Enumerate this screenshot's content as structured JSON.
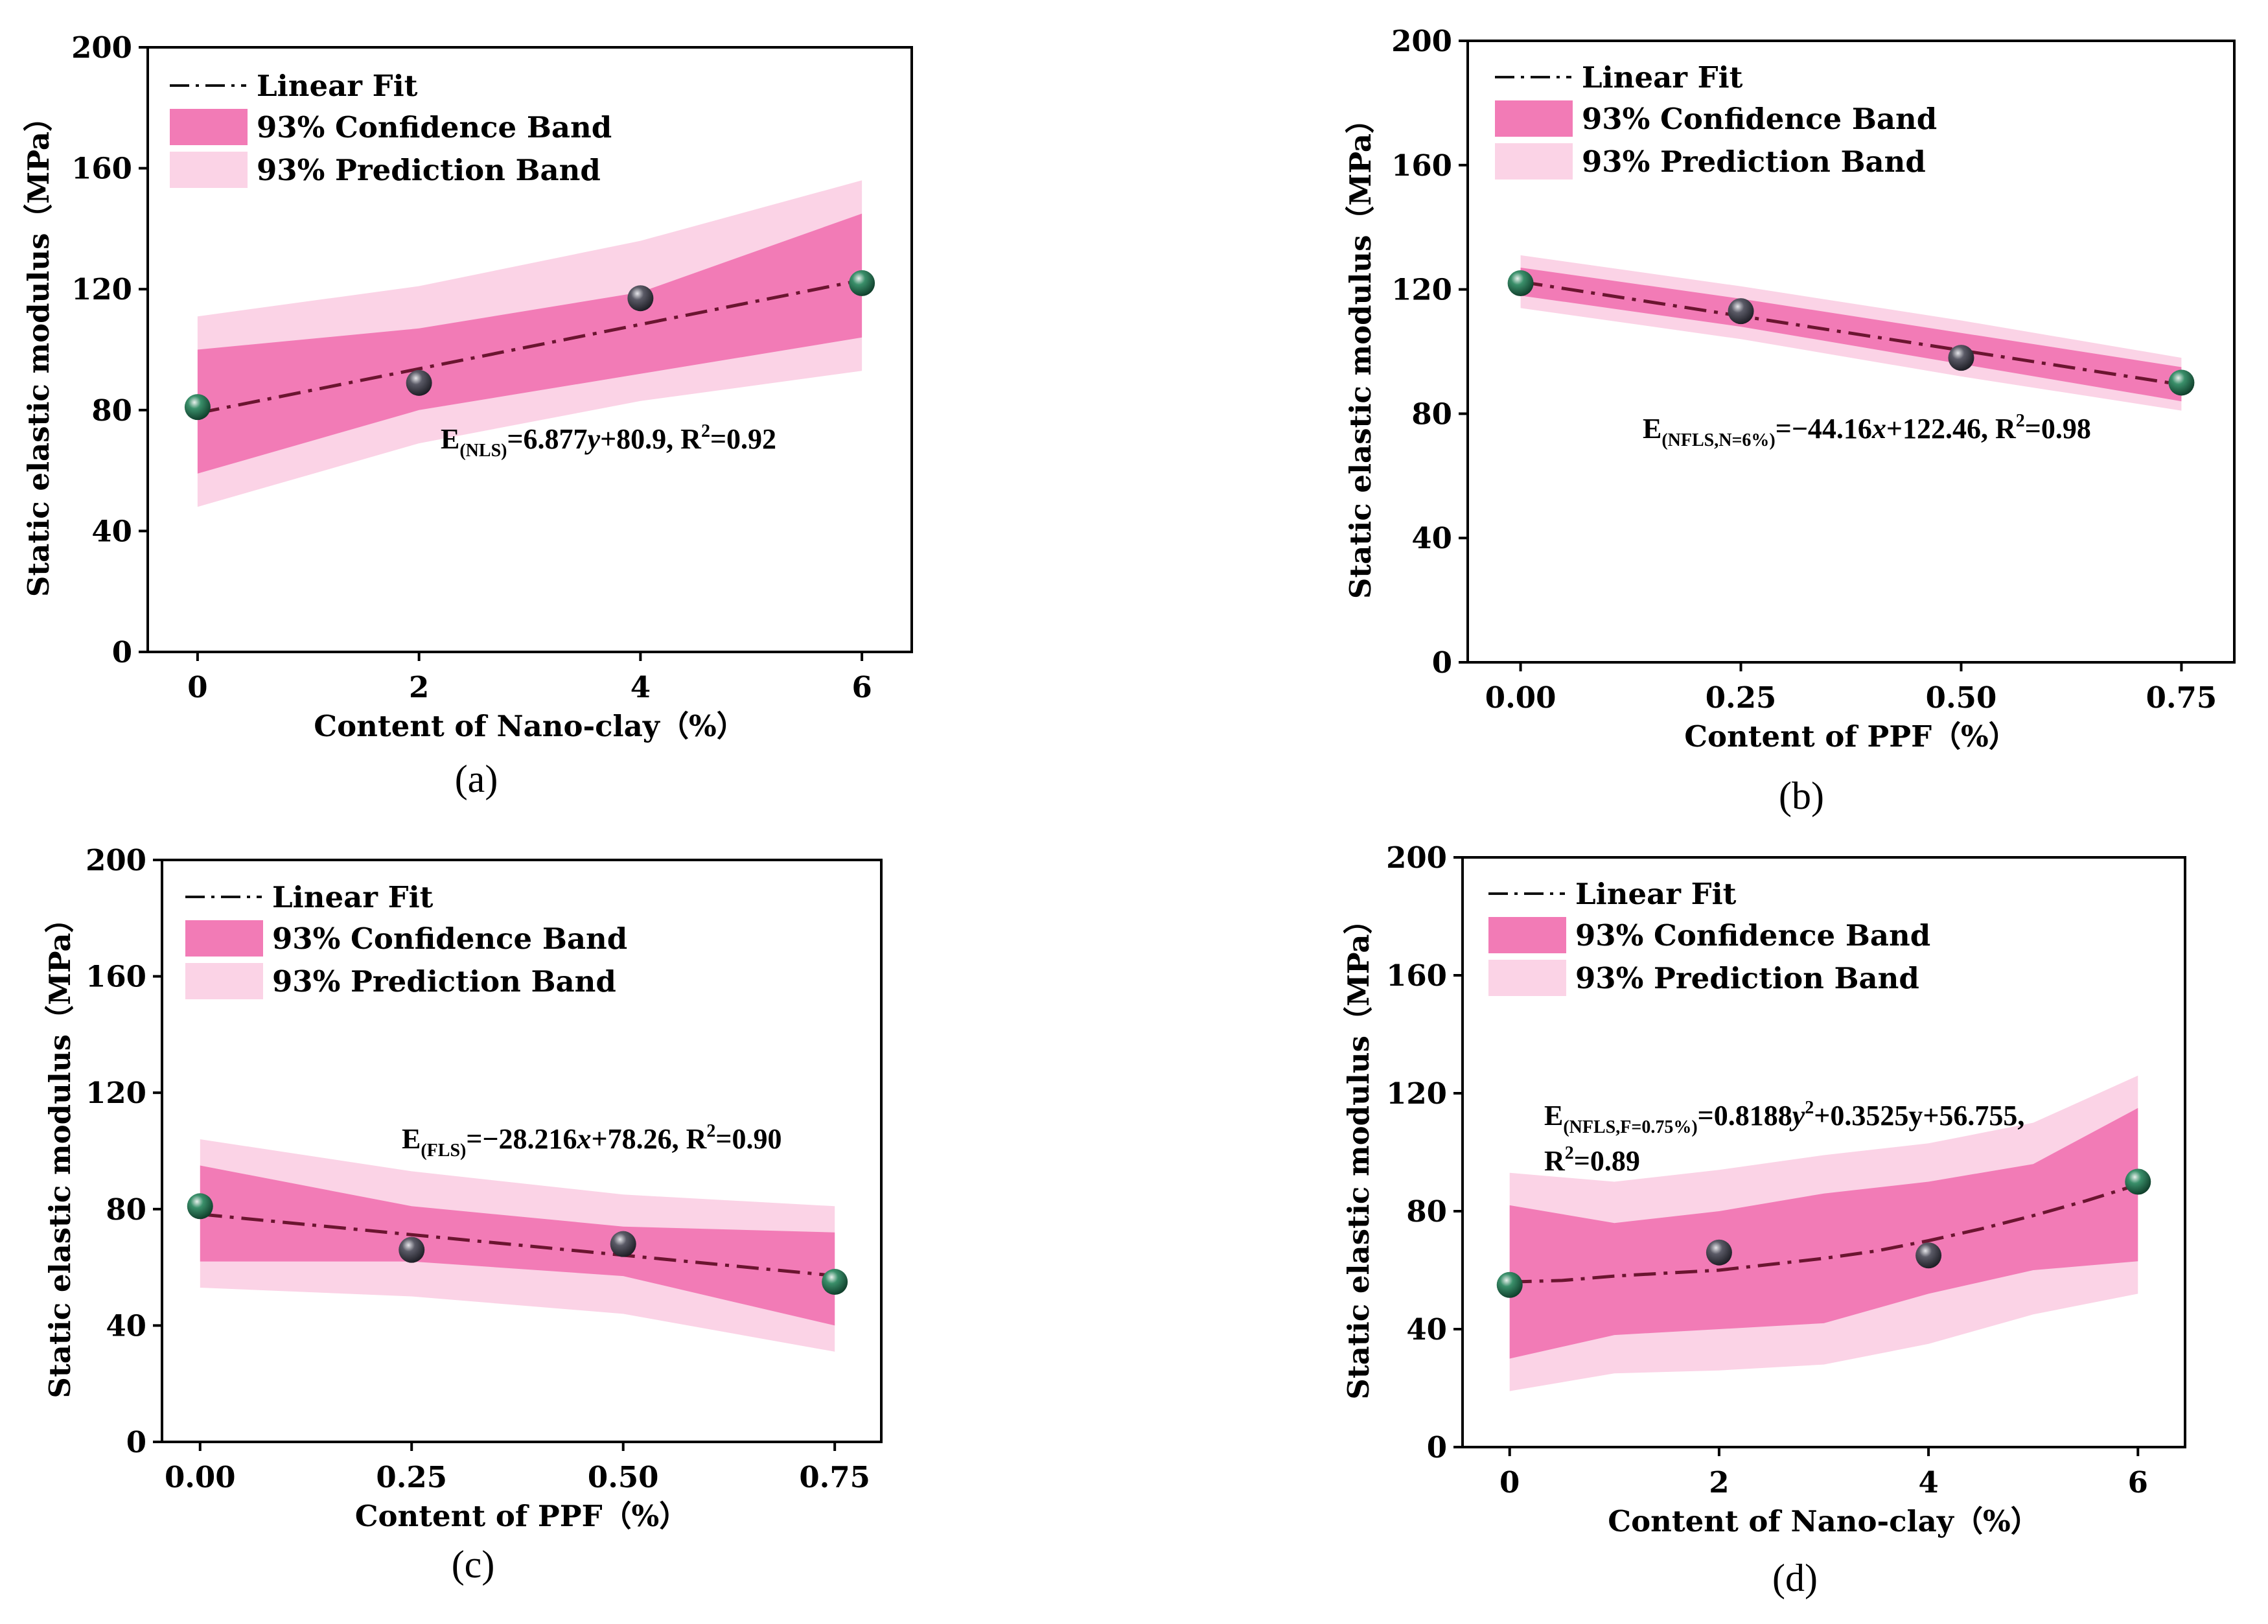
{
  "chart_data": [
    {
      "type": "line",
      "panel_label": "(a)",
      "xlabel": "Content of Nano-clay（%）",
      "ylabel": "Static elastic modulus（MPa）",
      "xlim": [
        -0.45,
        6.45
      ],
      "ylim": [
        0,
        200
      ],
      "xticks": [
        "0",
        "2",
        "4",
        "6"
      ],
      "xtick_values": [
        0,
        2,
        4,
        6
      ],
      "yticks": [
        "0",
        "40",
        "80",
        "120",
        "160",
        "200"
      ],
      "ytick_values": [
        0,
        40,
        80,
        120,
        160,
        200
      ],
      "legend": {
        "position": "top-left",
        "entries": [
          "Linear Fit",
          "93% Confidence Band",
          "93% Prediction Band"
        ]
      },
      "equation_lines": [
        [
          "E",
          "(NLS)",
          "=6.877",
          "y",
          "+80.9, R",
          "2",
          "=0.92"
        ]
      ],
      "points": {
        "x": [
          0,
          2,
          4,
          6
        ],
        "y": [
          81,
          89,
          117,
          122
        ]
      },
      "fit": {
        "x": [
          0,
          6
        ],
        "y": [
          79,
          123
        ]
      },
      "confidence_band": {
        "x": [
          0,
          2,
          4,
          6
        ],
        "upper": [
          100,
          107,
          119,
          145
        ],
        "lower": [
          59,
          80,
          92,
          104
        ]
      },
      "prediction_band": {
        "x": [
          0,
          2,
          4,
          6
        ],
        "upper": [
          111,
          121,
          136,
          156
        ],
        "lower": [
          48,
          69,
          83,
          93
        ]
      }
    },
    {
      "type": "line",
      "panel_label": "(b)",
      "xlabel": "Content of PPF（%）",
      "ylabel": "Static elastic modulus（MPa）",
      "xlim": [
        -0.06,
        0.81
      ],
      "ylim": [
        0,
        200
      ],
      "xticks": [
        "0.00",
        "0.25",
        "0.50",
        "0.75"
      ],
      "xtick_values": [
        0,
        0.25,
        0.5,
        0.75
      ],
      "yticks": [
        "0",
        "40",
        "80",
        "120",
        "160",
        "200"
      ],
      "ytick_values": [
        0,
        40,
        80,
        120,
        160,
        200
      ],
      "legend": {
        "position": "top-left",
        "entries": [
          "Linear Fit",
          "93% Confidence Band",
          "93% Prediction Band"
        ]
      },
      "equation_lines": [
        [
          "E",
          "(NFLS,N=6%)",
          "=−44.16",
          "x",
          "+122.46, R",
          "2",
          "=0.98"
        ]
      ],
      "points": {
        "x": [
          0,
          0.25,
          0.5,
          0.75
        ],
        "y": [
          122,
          113,
          98,
          90
        ]
      },
      "fit": {
        "x": [
          0,
          0.75
        ],
        "y": [
          122.46,
          89.34
        ]
      },
      "confidence_band": {
        "x": [
          0,
          0.25,
          0.5,
          0.75
        ],
        "upper": [
          127,
          117,
          106,
          95
        ],
        "lower": [
          118,
          108,
          96,
          84
        ]
      },
      "prediction_band": {
        "x": [
          0,
          0.25,
          0.5,
          0.75
        ],
        "upper": [
          131,
          121,
          110,
          98
        ],
        "lower": [
          114,
          104,
          92,
          81
        ]
      }
    },
    {
      "type": "line",
      "panel_label": "(c)",
      "xlabel": "Content of PPF（%）",
      "ylabel": "Static elastic modulus（MPa）",
      "xlim": [
        -0.045,
        0.805
      ],
      "ylim": [
        0,
        200
      ],
      "xticks": [
        "0.00",
        "0.25",
        "0.50",
        "0.75"
      ],
      "xtick_values": [
        0,
        0.25,
        0.5,
        0.75
      ],
      "yticks": [
        "0",
        "40",
        "80",
        "120",
        "160",
        "200"
      ],
      "ytick_values": [
        0,
        40,
        80,
        120,
        160,
        200
      ],
      "legend": {
        "position": "top-left",
        "entries": [
          "Linear Fit",
          "93% Confidence Band",
          "93% Prediction Band"
        ]
      },
      "equation_lines": [
        [
          "E",
          "(FLS)",
          "=−28.216",
          "x",
          "+78.26, R",
          "2",
          "=0.90"
        ]
      ],
      "points": {
        "x": [
          0,
          0.25,
          0.5,
          0.75
        ],
        "y": [
          81,
          66,
          68,
          55
        ]
      },
      "fit": {
        "x": [
          0,
          0.75
        ],
        "y": [
          78.26,
          57.1
        ]
      },
      "confidence_band": {
        "x": [
          0,
          0.25,
          0.5,
          0.75
        ],
        "upper": [
          95,
          81,
          74,
          72
        ],
        "lower": [
          62,
          62,
          57,
          40
        ]
      },
      "prediction_band": {
        "x": [
          0,
          0.25,
          0.5,
          0.75
        ],
        "upper": [
          104,
          93,
          85,
          81
        ],
        "lower": [
          53,
          50,
          44,
          31
        ]
      }
    },
    {
      "type": "line",
      "panel_label": "(d)",
      "xlabel": "Content of Nano-clay（%）",
      "ylabel": "Static elastic modulus（MPa）",
      "xlim": [
        -0.45,
        6.45
      ],
      "ylim": [
        0,
        200
      ],
      "xticks": [
        "0",
        "2",
        "4",
        "6"
      ],
      "xtick_values": [
        0,
        2,
        4,
        6
      ],
      "yticks": [
        "0",
        "40",
        "80",
        "120",
        "160",
        "200"
      ],
      "ytick_values": [
        0,
        40,
        80,
        120,
        160,
        200
      ],
      "legend": {
        "position": "top-left",
        "entries": [
          "Linear Fit",
          "93% Confidence Band",
          "93% Prediction Band"
        ]
      },
      "equation_lines": [
        [
          "E",
          "(NFLS,F=0.75%)",
          "=0.8188",
          "y",
          "2",
          "+0.3525y+56.755,"
        ],
        [
          "R",
          "2",
          "=0.89"
        ]
      ],
      "points": {
        "x": [
          0,
          2,
          4,
          6
        ],
        "y": [
          55,
          66,
          65,
          90
        ]
      },
      "fit": {
        "x": [
          0,
          0.5,
          1,
          1.5,
          2,
          2.5,
          3,
          3.5,
          4,
          4.5,
          5,
          5.5,
          6
        ],
        "y": [
          56,
          56.5,
          58,
          59,
          60,
          62,
          64,
          66.5,
          70,
          74,
          78.5,
          83.5,
          89
        ]
      },
      "confidence_band": {
        "x": [
          0,
          1,
          2,
          3,
          4,
          5,
          6
        ],
        "upper": [
          82,
          76,
          80,
          86,
          90,
          96,
          115
        ],
        "lower": [
          30,
          38,
          40,
          42,
          52,
          60,
          63
        ]
      },
      "prediction_band": {
        "x": [
          0,
          1,
          2,
          3,
          4,
          5,
          6
        ],
        "upper": [
          93,
          90,
          94,
          99,
          103,
          110,
          126
        ],
        "lower": [
          19,
          25,
          26,
          28,
          35,
          45,
          52
        ]
      }
    }
  ]
}
